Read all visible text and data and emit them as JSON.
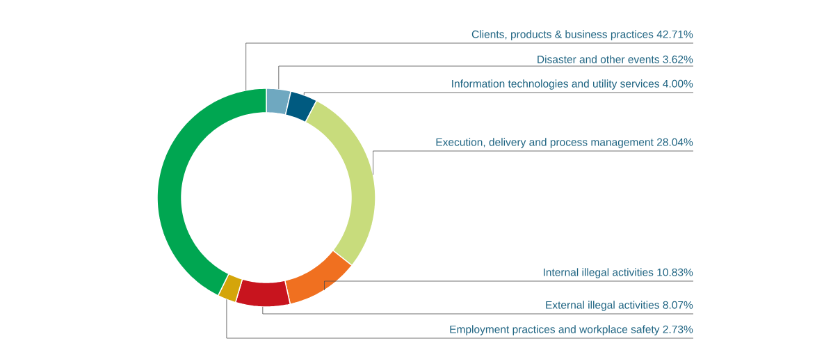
{
  "chart_data": {
    "type": "donut",
    "categories": [
      "Disaster and other events",
      "Information technologies and utility services",
      "Execution, delivery and process management",
      "Internal illegal activities",
      "External illegal activities",
      "Employment practices and workplace safety",
      "Clients, products & business practices"
    ],
    "values": [
      3.62,
      4.0,
      28.04,
      10.83,
      8.07,
      2.73,
      42.71
    ],
    "value_labels": [
      "3.62%",
      "4.00%",
      "28.04%",
      "10.83%",
      "8.07%",
      "2.73%",
      "42.71%"
    ],
    "colors": [
      "#6fa8c0",
      "#005a80",
      "#c8dc7c",
      "#f07020",
      "#c8141e",
      "#d4a50a",
      "#00a651"
    ]
  }
}
